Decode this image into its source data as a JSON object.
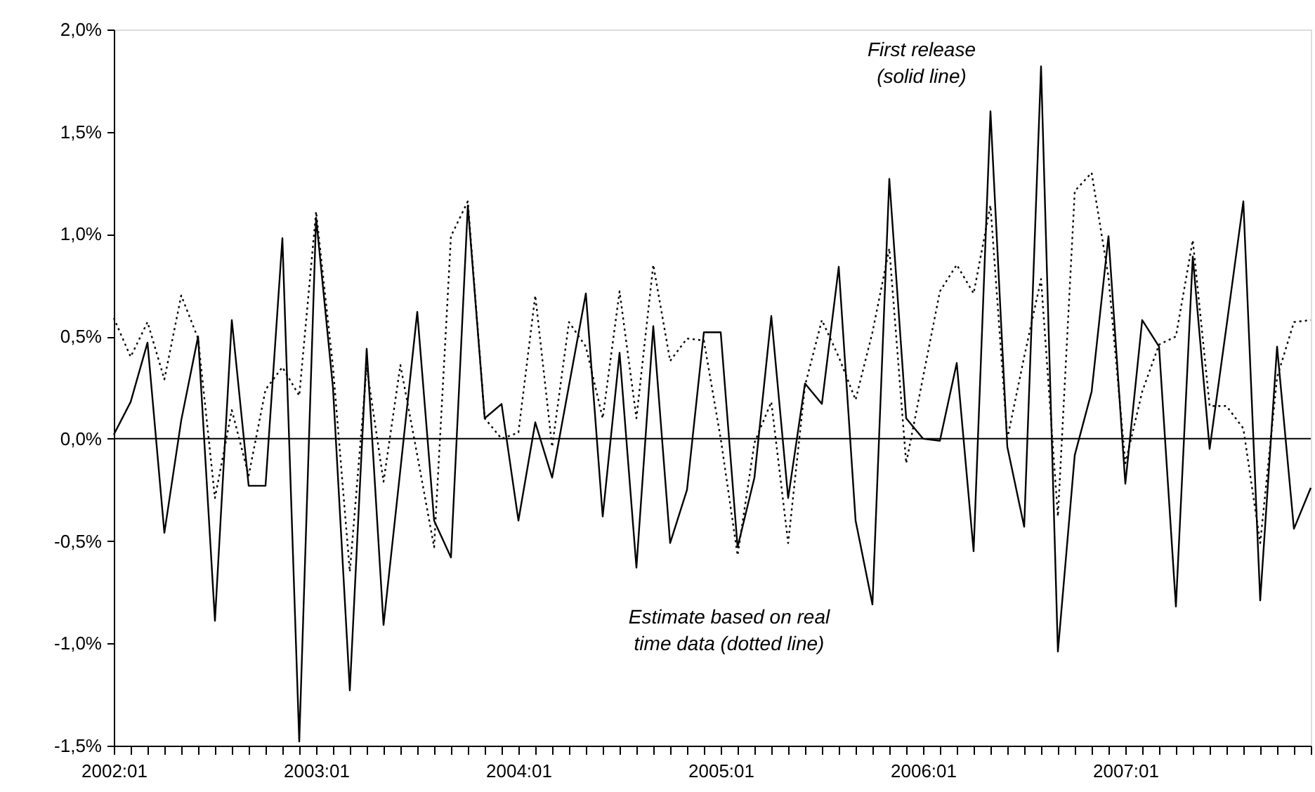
{
  "chart_data": {
    "type": "line",
    "categories": [
      "2002:01",
      null,
      null,
      null,
      null,
      null,
      null,
      null,
      null,
      null,
      null,
      null,
      "2003:01",
      null,
      null,
      null,
      null,
      null,
      null,
      null,
      null,
      null,
      null,
      null,
      "2004:01",
      null,
      null,
      null,
      null,
      null,
      null,
      null,
      null,
      null,
      null,
      null,
      "2005:01",
      null,
      null,
      null,
      null,
      null,
      null,
      null,
      null,
      null,
      null,
      null,
      "2006:01",
      null,
      null,
      null,
      null,
      null,
      null,
      null,
      null,
      null,
      null,
      null,
      "2007:01",
      null,
      null,
      null,
      null,
      null,
      null,
      null,
      null,
      null,
      null,
      null
    ],
    "series": [
      {
        "color": "#000000",
        "line_style": "solid",
        "values": [
          0.02,
          0.18,
          0.47,
          -0.46,
          0.09,
          0.5,
          -0.89,
          0.58,
          -0.23,
          -0.23,
          0.98,
          -1.48,
          1.08,
          0.25,
          -1.23,
          0.44,
          -0.91,
          -0.15,
          0.62,
          -0.4,
          -0.58,
          1.14,
          0.1,
          0.17,
          -0.4,
          0.08,
          -0.19,
          0.26,
          0.71,
          -0.38,
          0.42,
          -0.63,
          0.55,
          -0.51,
          -0.25,
          0.52,
          0.52,
          -0.53,
          -0.19,
          0.6,
          -0.29,
          0.27,
          0.17,
          0.84,
          -0.4,
          -0.81,
          1.27,
          0.1,
          0.0,
          -0.01,
          0.37,
          -0.55,
          1.6,
          -0.04,
          -0.43,
          1.82,
          -1.04,
          -0.08,
          0.23,
          0.99,
          -0.22,
          0.58,
          0.45,
          -0.82,
          0.89,
          -0.05,
          0.55,
          1.16,
          -0.79,
          0.45,
          -0.44,
          -0.24
        ]
      },
      {
        "color": "#000000",
        "line_style": "dotted",
        "values": [
          0.59,
          0.4,
          0.57,
          0.29,
          0.7,
          0.49,
          -0.29,
          0.14,
          -0.18,
          0.24,
          0.35,
          0.21,
          1.11,
          0.35,
          -0.65,
          0.35,
          -0.21,
          0.36,
          -0.08,
          -0.53,
          0.99,
          1.16,
          0.1,
          0.0,
          0.03,
          0.7,
          -0.04,
          0.57,
          0.45,
          0.1,
          0.72,
          0.1,
          0.85,
          0.38,
          0.49,
          0.48,
          0.0,
          -0.57,
          -0.02,
          0.18,
          -0.51,
          0.26,
          0.58,
          0.4,
          0.19,
          0.52,
          0.93,
          -0.12,
          0.3,
          0.72,
          0.85,
          0.71,
          1.14,
          0.0,
          0.4,
          0.78,
          -0.38,
          1.21,
          1.3,
          0.79,
          -0.12,
          0.23,
          0.46,
          0.5,
          0.97,
          0.16,
          0.16,
          0.05,
          -0.51,
          0.3,
          0.57,
          0.58
        ]
      }
    ],
    "ylim": [
      -1.5,
      2.0
    ],
    "yticks": [
      {
        "value": -1.5,
        "label": "-1,5%"
      },
      {
        "value": -1.0,
        "label": "-1,0%"
      },
      {
        "value": -0.5,
        "label": "-0,5%"
      },
      {
        "value": 0.0,
        "label": "0,0%"
      },
      {
        "value": 0.5,
        "label": "0,5%"
      },
      {
        "value": 1.0,
        "label": "1,0%"
      },
      {
        "value": 1.5,
        "label": "1,5%"
      },
      {
        "value": 2.0,
        "label": "2,0%"
      }
    ],
    "ref_lines": [
      {
        "axis": "y",
        "value": 0,
        "color": "#000000",
        "line_style": "solid"
      }
    ],
    "annotations": [
      "First release\n(solid line)",
      "Estimate based on real\ntime data (dotted line)"
    ],
    "grid": false
  }
}
